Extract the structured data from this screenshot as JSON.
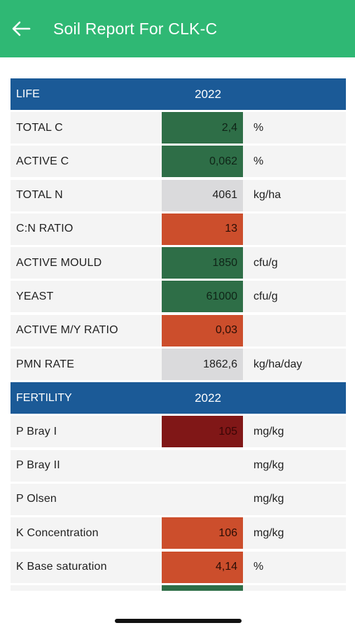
{
  "header": {
    "title": "Soil Report For CLK-C",
    "back_icon": "arrow-left-icon",
    "bg_color": "#2fb874"
  },
  "sections": [
    {
      "title": "LIFE",
      "year": "2022",
      "rows": [
        {
          "label": "TOTAL C",
          "value": "2,4",
          "unit": "%",
          "color": "green"
        },
        {
          "label": "ACTIVE C",
          "value": "0,062",
          "unit": "%",
          "color": "green"
        },
        {
          "label": "TOTAL N",
          "value": "4061",
          "unit": "kg/ha",
          "color": "grey"
        },
        {
          "label": "C:N RATIO",
          "value": "13",
          "unit": "",
          "color": "orange"
        },
        {
          "label": "ACTIVE MOULD",
          "value": "1850",
          "unit": "cfu/g",
          "color": "green"
        },
        {
          "label": "YEAST",
          "value": "61000",
          "unit": "cfu/g",
          "color": "green"
        },
        {
          "label": "ACTIVE M/Y RATIO",
          "value": "0,03",
          "unit": "",
          "color": "orange"
        },
        {
          "label": "PMN RATE",
          "value": "1862,6",
          "unit": "kg/ha/day",
          "color": "grey"
        }
      ]
    },
    {
      "title": "FERTILITY",
      "year": "2022",
      "rows": [
        {
          "label": "P Bray I",
          "value": "105",
          "unit": "mg/kg",
          "color": "dark"
        },
        {
          "label": "P Bray II",
          "value": "",
          "unit": "mg/kg",
          "color": "none"
        },
        {
          "label": "P Olsen",
          "value": "",
          "unit": "mg/kg",
          "color": "none"
        },
        {
          "label": "K Concentration",
          "value": "106",
          "unit": "mg/kg",
          "color": "orange"
        },
        {
          "label": "K Base saturation",
          "value": "4,14",
          "unit": "%",
          "color": "orange"
        }
      ]
    }
  ],
  "colors": {
    "header_blue": "#1b5a97",
    "green": "#2e6e47",
    "grey": "#dadadc",
    "orange": "#cc4e2c",
    "dark": "#801717"
  }
}
